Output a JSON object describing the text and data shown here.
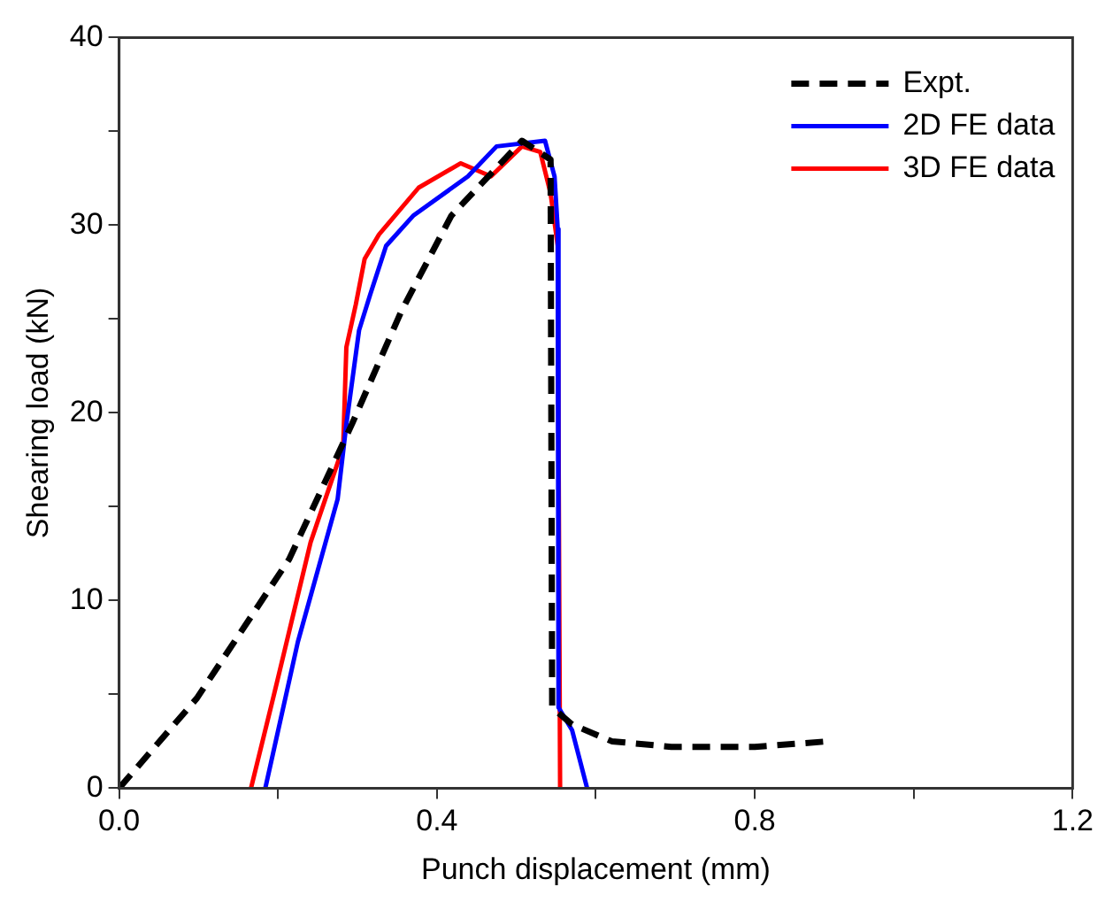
{
  "chart_data": {
    "type": "line",
    "xlabel": "Punch displacement (mm)",
    "ylabel": "Shearing load (kN)",
    "xlim": [
      0,
      1.2
    ],
    "ylim": [
      0,
      40
    ],
    "xticks": [
      {
        "value": 0,
        "label": "0.0"
      },
      {
        "value": 0.2,
        "label": null
      },
      {
        "value": 0.4,
        "label": "0.4"
      },
      {
        "value": 0.6,
        "label": null
      },
      {
        "value": 0.8,
        "label": "0.8"
      },
      {
        "value": 1.0,
        "label": null
      },
      {
        "value": 1.2,
        "label": "1.2"
      }
    ],
    "yticks": [
      0,
      {
        "value": 5,
        "label": null
      },
      10,
      {
        "value": 15,
        "label": null
      },
      20,
      {
        "value": 25,
        "label": null
      },
      30,
      {
        "value": 35,
        "label": null
      },
      40
    ],
    "grid": false,
    "legend": "top right",
    "marker": "none",
    "series": [
      {
        "name": "Expt.",
        "color": "#000000",
        "line_style": "dashed",
        "x": [
          0,
          0.098,
          0.214,
          0.293,
          0.355,
          0.418,
          0.507,
          0.543,
          0.545,
          0.57,
          0.62,
          0.695,
          0.734,
          0.8,
          0.893
        ],
        "values": [
          0,
          4.8,
          12.2,
          19.4,
          25.4,
          30.5,
          34.5,
          33.5,
          4.3,
          3.4,
          2.5,
          2.2,
          2.2,
          2.2,
          2.5
        ]
      },
      {
        "name": "2D FE data",
        "color": "#0000ff",
        "line_style": "solid",
        "x": [
          0.184,
          0.225,
          0.275,
          0.286,
          0.302,
          0.316,
          0.336,
          0.37,
          0.439,
          0.475,
          0.536,
          0.548,
          0.552,
          0.553,
          0.57,
          0.589
        ],
        "values": [
          0,
          7.8,
          15.4,
          19.4,
          24.4,
          26.3,
          28.9,
          30.5,
          32.6,
          34.2,
          34.5,
          32.6,
          29.8,
          4.3,
          3.1,
          0
        ]
      },
      {
        "name": "3D FE data",
        "color": "#ff0000",
        "line_style": "solid",
        "x": [
          0.166,
          0.195,
          0.241,
          0.282,
          0.286,
          0.298,
          0.309,
          0.327,
          0.377,
          0.43,
          0.468,
          0.507,
          0.53,
          0.543,
          0.552,
          0.555
        ],
        "values": [
          0,
          5.0,
          13.1,
          18.2,
          23.5,
          25.8,
          28.2,
          29.5,
          32.0,
          33.3,
          32.6,
          34.2,
          33.9,
          31.7,
          28.9,
          0
        ]
      }
    ]
  }
}
